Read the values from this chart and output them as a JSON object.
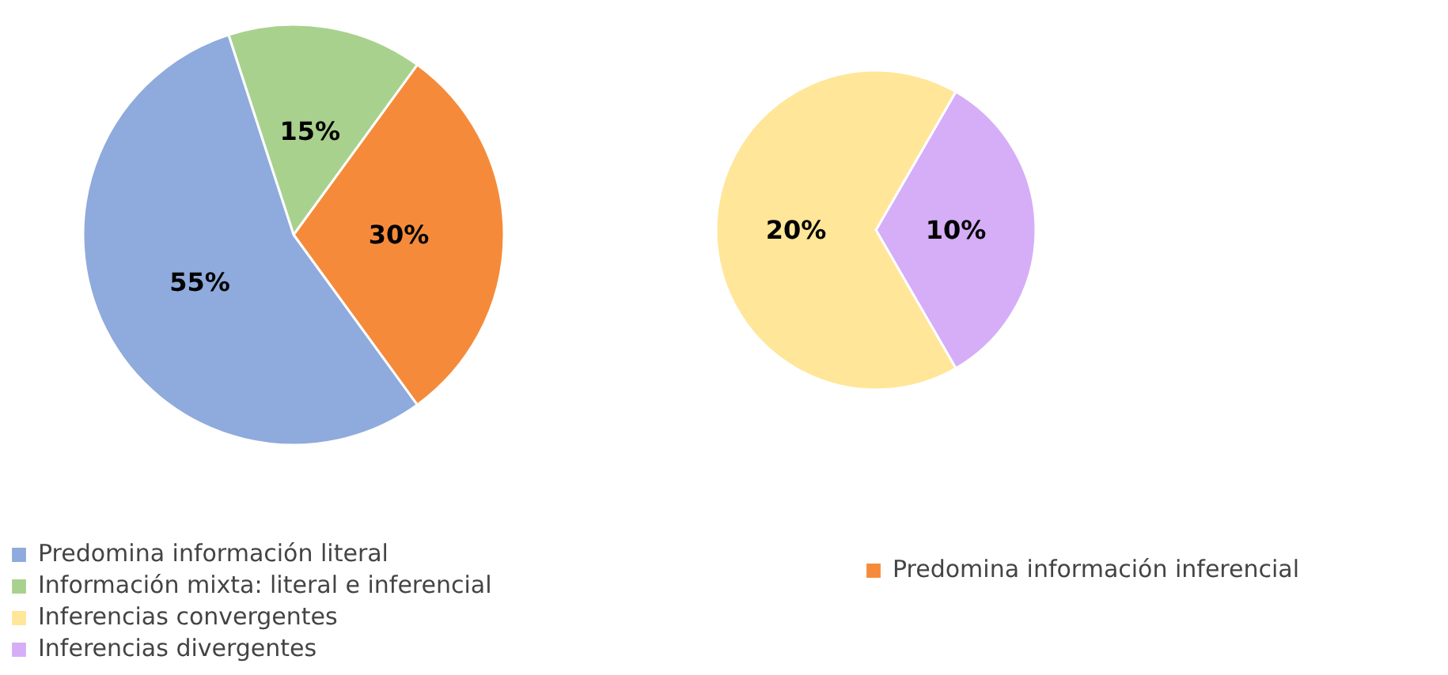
{
  "chart_data": [
    {
      "type": "pie",
      "categories": [
        "Predomina información literal",
        "Información mixta: literal e inferencial",
        "Predomina información inferencial"
      ],
      "values": [
        55,
        15,
        30
      ],
      "colors": [
        "#8faadc",
        "#a9d18e",
        "#f58b3a"
      ],
      "value_labels": [
        "55%",
        "15%",
        "30%"
      ],
      "legend": "bottom"
    },
    {
      "type": "pie",
      "categories": [
        "Inferencias convergentes",
        "Inferencias divergentes"
      ],
      "values": [
        20,
        10
      ],
      "colors": [
        "#ffe699",
        "#d5aef7"
      ],
      "value_labels": [
        "20%",
        "10%"
      ],
      "legend": "bottom"
    }
  ]
}
